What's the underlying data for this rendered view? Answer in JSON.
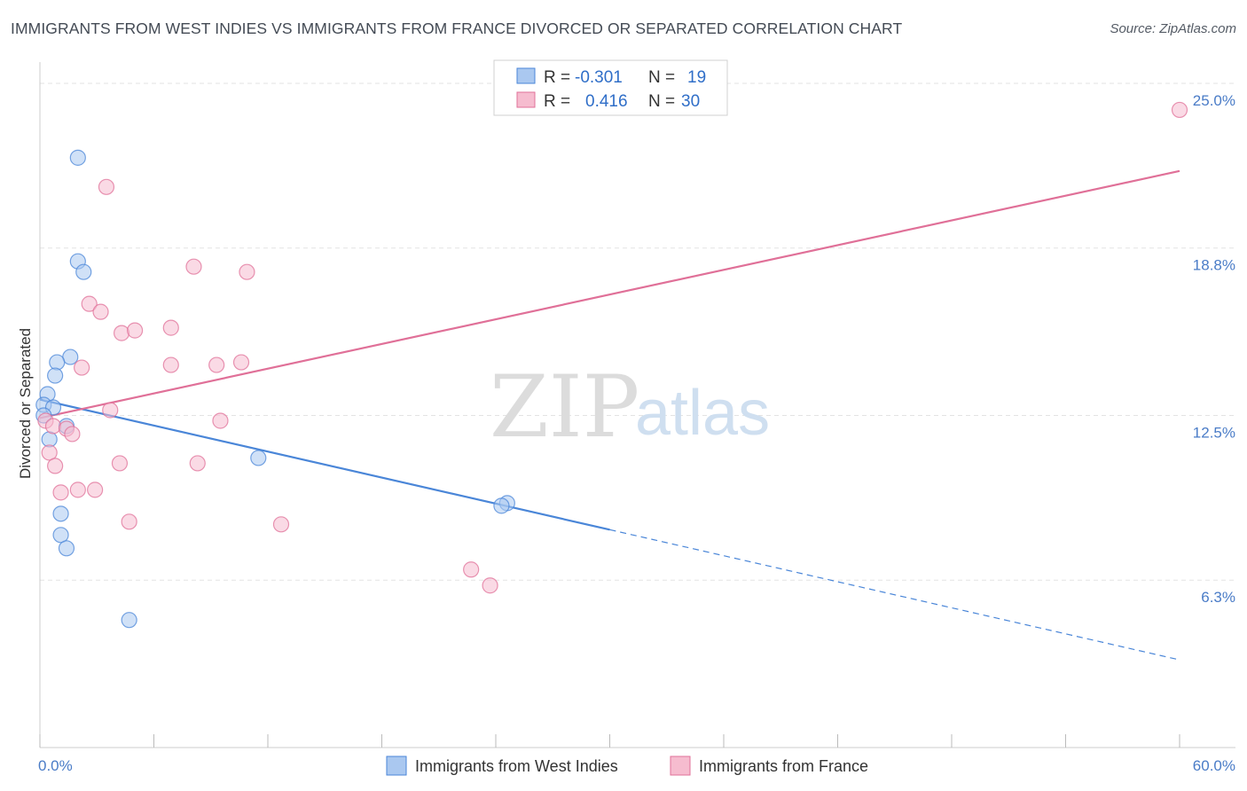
{
  "title": "IMMIGRANTS FROM WEST INDIES VS IMMIGRANTS FROM FRANCE DIVORCED OR SEPARATED CORRELATION CHART",
  "source": "Source: ZipAtlas.com",
  "chart_data": {
    "type": "scatter",
    "ylabel": "Divorced or Separated",
    "xlim": [
      0,
      60
    ],
    "ylim": [
      0,
      25.8
    ],
    "x_tick_labels": [
      "0.0%",
      "60.0%"
    ],
    "y_ticks": [
      {
        "value": 6.3,
        "label": "6.3%"
      },
      {
        "value": 12.5,
        "label": "12.5%"
      },
      {
        "value": 18.8,
        "label": "18.8%"
      },
      {
        "value": 25.0,
        "label": "25.0%"
      }
    ],
    "watermark": {
      "zip": "ZIP",
      "atlas": "atlas"
    },
    "legend": {
      "r_label": "R =",
      "n_label": "N =",
      "entries": [
        {
          "r": "-0.301",
          "n": "19"
        },
        {
          "r": "0.416",
          "n": "30"
        }
      ]
    },
    "series": [
      {
        "name": "Immigrants from West Indies",
        "color": "#4a86d8",
        "fill": "#aac8f0",
        "points": [
          [
            2.0,
            22.2
          ],
          [
            2.0,
            18.3
          ],
          [
            2.3,
            17.9
          ],
          [
            1.6,
            14.7
          ],
          [
            0.9,
            14.5
          ],
          [
            0.8,
            14.0
          ],
          [
            0.4,
            13.3
          ],
          [
            0.2,
            12.9
          ],
          [
            0.7,
            12.8
          ],
          [
            0.2,
            12.5
          ],
          [
            1.4,
            12.1
          ],
          [
            0.5,
            11.6
          ],
          [
            11.5,
            10.9
          ],
          [
            24.6,
            9.2
          ],
          [
            24.3,
            9.1
          ],
          [
            1.1,
            8.8
          ],
          [
            1.1,
            8.0
          ],
          [
            1.4,
            7.5
          ],
          [
            4.7,
            4.8
          ]
        ],
        "trend": {
          "x0": 0,
          "y0": 13.1,
          "x_solid_end": 30,
          "x1": 60,
          "y1": 3.3
        }
      },
      {
        "name": "Immigrants from France",
        "color": "#e07098",
        "fill": "#f6bccf",
        "points": [
          [
            3.5,
            21.1
          ],
          [
            8.1,
            18.1
          ],
          [
            10.9,
            17.9
          ],
          [
            2.6,
            16.7
          ],
          [
            3.2,
            16.4
          ],
          [
            6.9,
            15.8
          ],
          [
            4.3,
            15.6
          ],
          [
            5.0,
            15.7
          ],
          [
            2.2,
            14.3
          ],
          [
            6.9,
            14.4
          ],
          [
            9.3,
            14.4
          ],
          [
            10.6,
            14.5
          ],
          [
            3.7,
            12.7
          ],
          [
            9.5,
            12.3
          ],
          [
            0.3,
            12.3
          ],
          [
            0.7,
            12.1
          ],
          [
            1.4,
            12.0
          ],
          [
            1.7,
            11.8
          ],
          [
            0.5,
            11.1
          ],
          [
            0.8,
            10.6
          ],
          [
            4.2,
            10.7
          ],
          [
            8.3,
            10.7
          ],
          [
            1.1,
            9.6
          ],
          [
            2.0,
            9.7
          ],
          [
            2.9,
            9.7
          ],
          [
            4.7,
            8.5
          ],
          [
            12.7,
            8.4
          ],
          [
            22.7,
            6.7
          ],
          [
            23.7,
            6.1
          ],
          [
            60.0,
            24.0
          ]
        ],
        "trend": {
          "x0": 0,
          "y0": 12.4,
          "x1": 60,
          "y1": 21.7
        }
      }
    ]
  }
}
